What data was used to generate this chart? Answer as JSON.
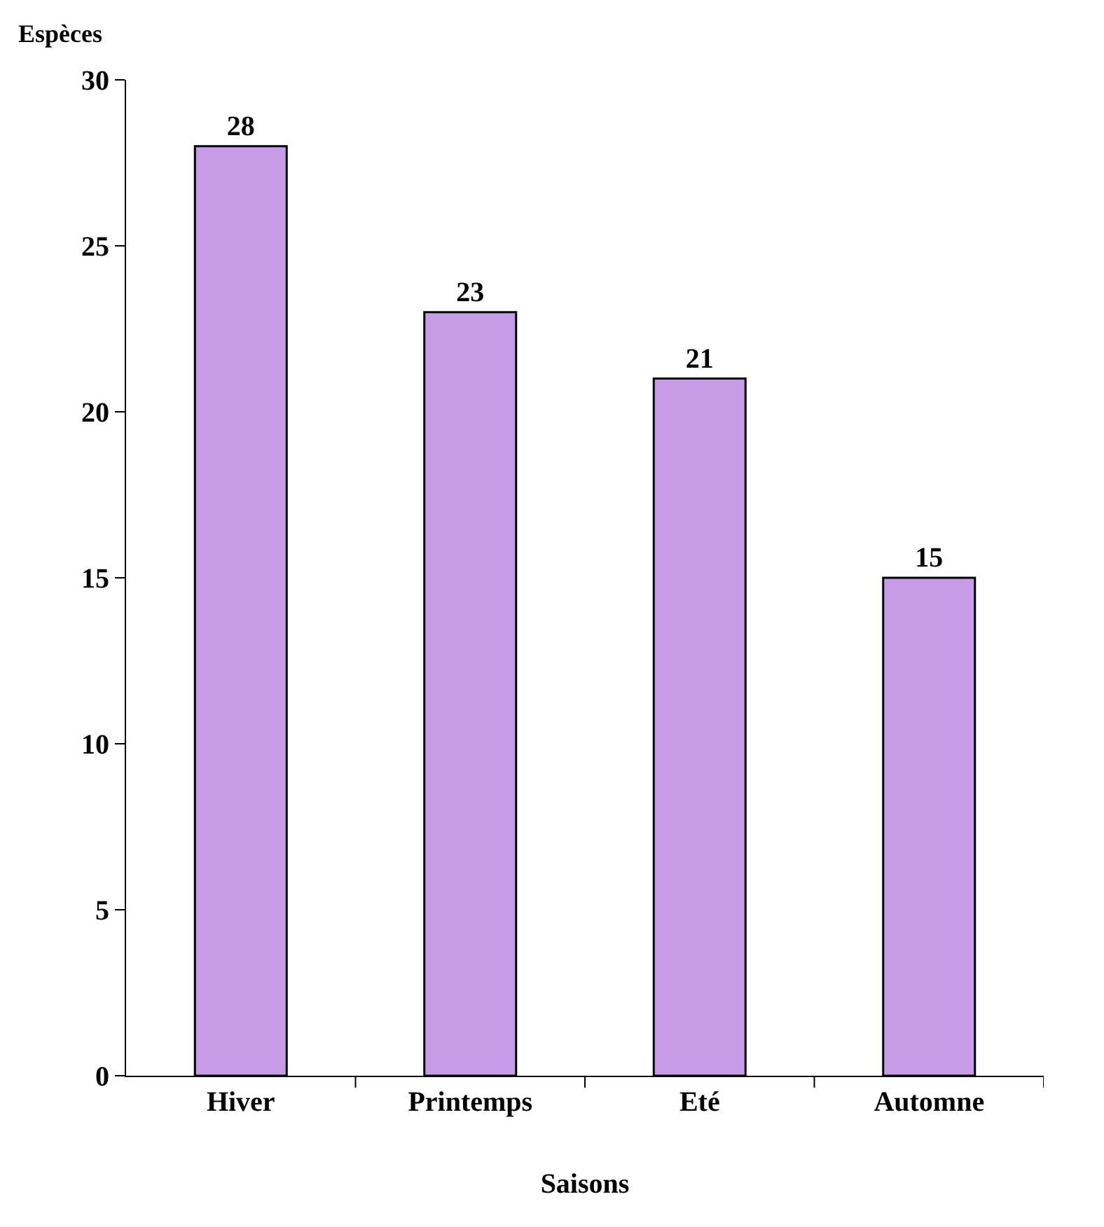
{
  "chart_data": {
    "type": "bar",
    "xlabel": "Saisons",
    "ylabel": "Espèces",
    "categories": [
      "Hiver",
      "Printemps",
      "Eté",
      "Automne"
    ],
    "values": [
      28,
      23,
      21,
      15
    ],
    "color": "#c89be6",
    "ylim": [
      0,
      30
    ],
    "yticks": [
      0,
      5,
      10,
      15,
      20,
      25,
      30
    ],
    "grid": false,
    "data_labels": true
  }
}
